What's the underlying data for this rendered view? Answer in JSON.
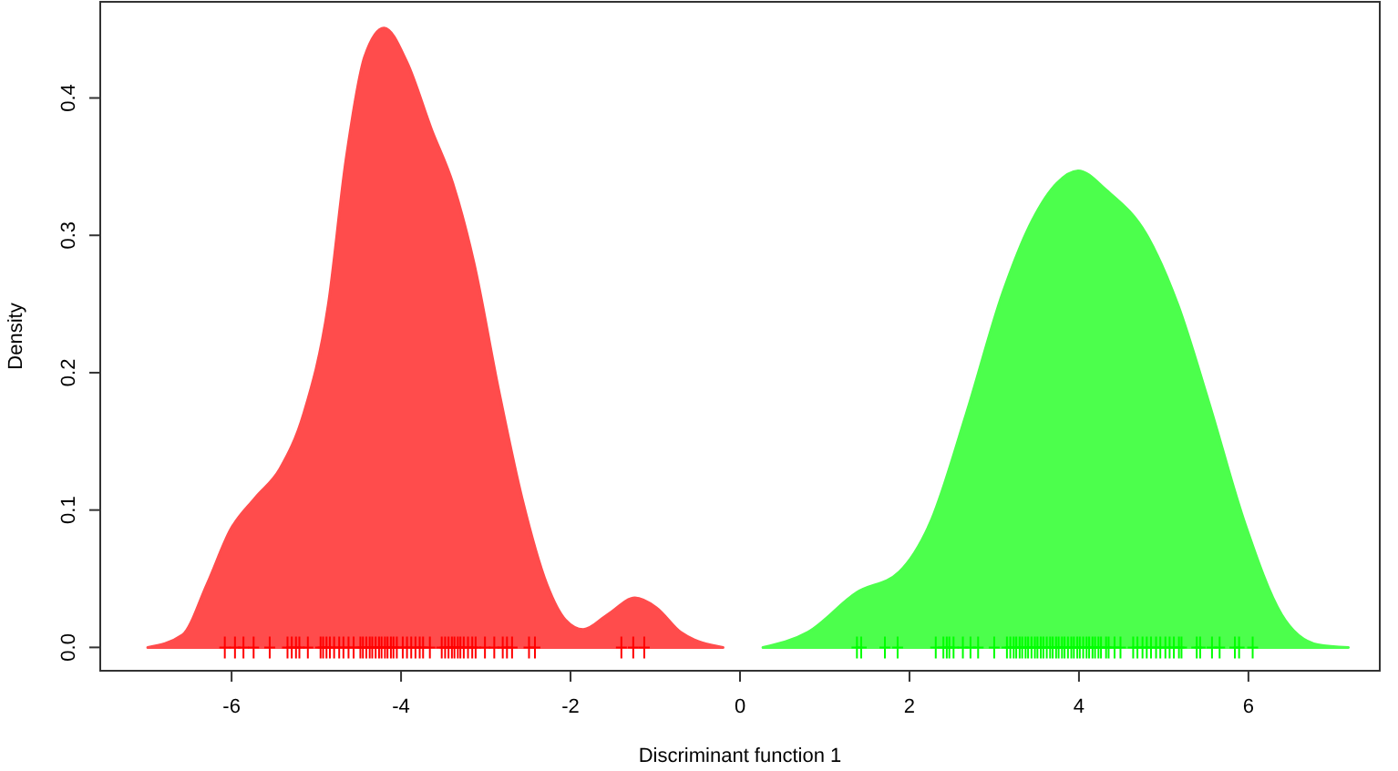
{
  "chart_data": {
    "type": "area",
    "xlabel": "Discriminant function 1",
    "ylabel": "Density",
    "xlim": [
      -7.55,
      7.55
    ],
    "ylim": [
      -0.017,
      0.47
    ],
    "xticks": [
      -6,
      -4,
      -2,
      0,
      2,
      4,
      6
    ],
    "yticks": [
      {
        "value": 0,
        "label": "0.0"
      },
      0.1,
      0.2,
      0.3,
      0.4
    ],
    "grid": false,
    "series": [
      {
        "color": "#ff4c4c",
        "x": [
          -6.99,
          -6.58,
          -6.29,
          -6.01,
          -5.72,
          -5.43,
          -5.15,
          -4.86,
          -4.65,
          -4.43,
          -4.2,
          -3.93,
          -3.64,
          -3.39,
          -3.14,
          -2.85,
          -2.57,
          -2.28,
          -2.06,
          -1.85,
          -1.56,
          -1.24,
          -0.99,
          -0.7,
          -0.2
        ],
        "values": [
          0,
          0.009,
          0.046,
          0.086,
          0.109,
          0.13,
          0.17,
          0.249,
          0.355,
          0.43,
          0.451,
          0.426,
          0.377,
          0.338,
          0.28,
          0.188,
          0.108,
          0.046,
          0.02,
          0.013,
          0.024,
          0.036,
          0.029,
          0.011,
          0
        ]
      },
      {
        "color": "#4cff4c",
        "x": [
          0.27,
          0.8,
          1.38,
          1.88,
          2.24,
          2.67,
          3.1,
          3.45,
          3.74,
          3.99,
          4.32,
          4.82,
          5.17,
          5.53,
          5.96,
          6.39,
          6.82,
          7.18
        ],
        "values": [
          0,
          0.011,
          0.04,
          0.055,
          0.09,
          0.17,
          0.258,
          0.311,
          0.338,
          0.347,
          0.333,
          0.298,
          0.249,
          0.179,
          0.09,
          0.024,
          0.002,
          0
        ]
      },
      {
        "type": "scatter",
        "marker": "cross",
        "color": "#ff0000",
        "x": [
          -6.08,
          -5.96,
          -5.86,
          -5.74,
          -5.55,
          -5.34,
          -5.29,
          -5.24,
          -5.2,
          -5.1,
          -4.95,
          -4.92,
          -4.88,
          -4.84,
          -4.79,
          -4.73,
          -4.68,
          -4.62,
          -4.56,
          -4.48,
          -4.45,
          -4.41,
          -4.37,
          -4.34,
          -4.3,
          -4.26,
          -4.23,
          -4.19,
          -4.16,
          -4.12,
          -4.09,
          -4.05,
          -3.98,
          -3.93,
          -3.88,
          -3.83,
          -3.78,
          -3.74,
          -3.66,
          -3.52,
          -3.48,
          -3.44,
          -3.4,
          -3.37,
          -3.33,
          -3.3,
          -3.26,
          -3.21,
          -3.16,
          -3.12,
          -3.01,
          -2.9,
          -2.8,
          -2.75,
          -2.69,
          -2.49,
          -2.42,
          -1.4,
          -1.26,
          -1.13
        ],
        "values": [
          0,
          0,
          0,
          0,
          0,
          0,
          0,
          0,
          0,
          0,
          0,
          0,
          0,
          0,
          0,
          0,
          0,
          0,
          0,
          0,
          0,
          0,
          0,
          0,
          0,
          0,
          0,
          0,
          0,
          0,
          0,
          0,
          0,
          0,
          0,
          0,
          0,
          0,
          0,
          0,
          0,
          0,
          0,
          0,
          0,
          0,
          0,
          0,
          0,
          0,
          0,
          0,
          0,
          0,
          0,
          0,
          0,
          0,
          0,
          0
        ]
      },
      {
        "type": "scatter",
        "marker": "cross",
        "color": "#00ff00",
        "x": [
          1.38,
          1.43,
          1.71,
          1.86,
          2.31,
          2.4,
          2.44,
          2.47,
          2.52,
          2.63,
          2.72,
          2.81,
          3.0,
          3.15,
          3.19,
          3.23,
          3.26,
          3.3,
          3.33,
          3.37,
          3.4,
          3.44,
          3.48,
          3.51,
          3.55,
          3.58,
          3.62,
          3.66,
          3.69,
          3.73,
          3.76,
          3.8,
          3.83,
          3.87,
          3.91,
          3.94,
          3.98,
          4.01,
          4.05,
          4.09,
          4.12,
          4.16,
          4.19,
          4.23,
          4.26,
          4.32,
          4.35,
          4.42,
          4.49,
          4.64,
          4.69,
          4.75,
          4.8,
          4.85,
          4.91,
          4.96,
          5.02,
          5.07,
          5.12,
          5.18,
          5.21,
          5.39,
          5.43,
          5.57,
          5.66,
          5.84,
          5.89,
          6.05
        ],
        "values": [
          0,
          0,
          0,
          0,
          0,
          0,
          0,
          0,
          0,
          0,
          0,
          0,
          0,
          0,
          0,
          0,
          0,
          0,
          0,
          0,
          0,
          0,
          0,
          0,
          0,
          0,
          0,
          0,
          0,
          0,
          0,
          0,
          0,
          0,
          0,
          0,
          0,
          0,
          0,
          0,
          0,
          0,
          0,
          0,
          0,
          0,
          0,
          0,
          0,
          0,
          0,
          0,
          0,
          0,
          0,
          0,
          0,
          0,
          0,
          0,
          0,
          0,
          0,
          0,
          0,
          0,
          0,
          0
        ]
      }
    ]
  }
}
